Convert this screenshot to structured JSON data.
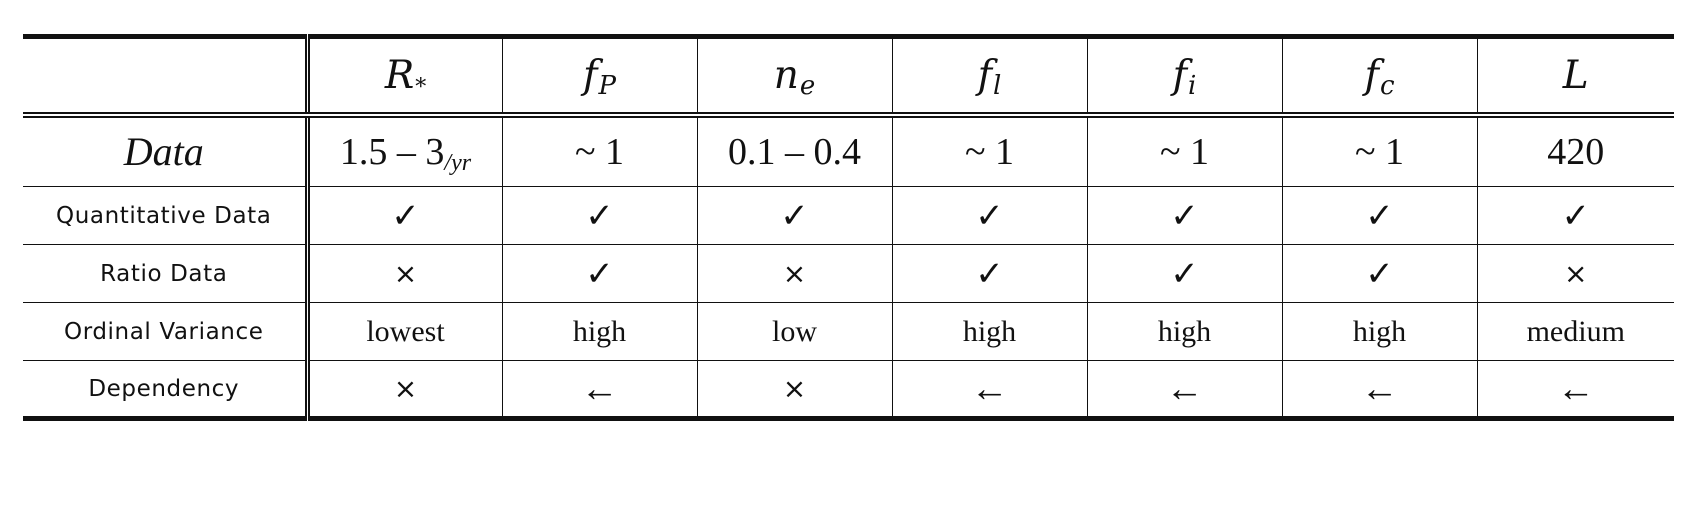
{
  "header": {
    "corner": "",
    "columns": [
      {
        "symbol": "R",
        "sub": "*"
      },
      {
        "symbol": "f",
        "sub": "P"
      },
      {
        "symbol": "n",
        "sub": "e"
      },
      {
        "symbol": "f",
        "sub": "l"
      },
      {
        "symbol": "f",
        "sub": "i"
      },
      {
        "symbol": "f",
        "sub": "c"
      },
      {
        "symbol": "L",
        "sub": ""
      }
    ]
  },
  "data_row": {
    "label": "Data",
    "values": [
      {
        "main": "1.5 – 3",
        "sub": "/yr"
      },
      {
        "main": "~ 1",
        "sub": ""
      },
      {
        "main": "0.1 – 0.4",
        "sub": ""
      },
      {
        "main": "~ 1",
        "sub": ""
      },
      {
        "main": "~ 1",
        "sub": ""
      },
      {
        "main": "~ 1",
        "sub": ""
      },
      {
        "main": "420",
        "sub": ""
      }
    ]
  },
  "rows": [
    {
      "label": "Quantitative Data",
      "cells": [
        "✓",
        "✓",
        "✓",
        "✓",
        "✓",
        "✓",
        "✓"
      ]
    },
    {
      "label": "Ratio Data",
      "cells": [
        "×",
        "✓",
        "×",
        "✓",
        "✓",
        "✓",
        "×"
      ]
    },
    {
      "label": "Ordinal Variance",
      "cells": [
        "lowest",
        "high",
        "low",
        "high",
        "high",
        "high",
        "medium"
      ]
    },
    {
      "label": "Dependency",
      "cells": [
        "×",
        "←",
        "×",
        "←",
        "←",
        "←",
        "←"
      ]
    }
  ]
}
